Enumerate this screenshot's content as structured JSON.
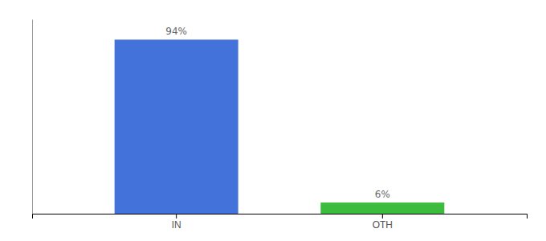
{
  "chart_data": {
    "type": "bar",
    "categories": [
      "IN",
      "OTH"
    ],
    "values": [
      94,
      6
    ],
    "value_labels": [
      "94%",
      "6%"
    ],
    "colors": [
      "#4472db",
      "#3dbb3d"
    ],
    "ylim": [
      0,
      105
    ],
    "data_labels": true,
    "tick_labels": "x"
  }
}
